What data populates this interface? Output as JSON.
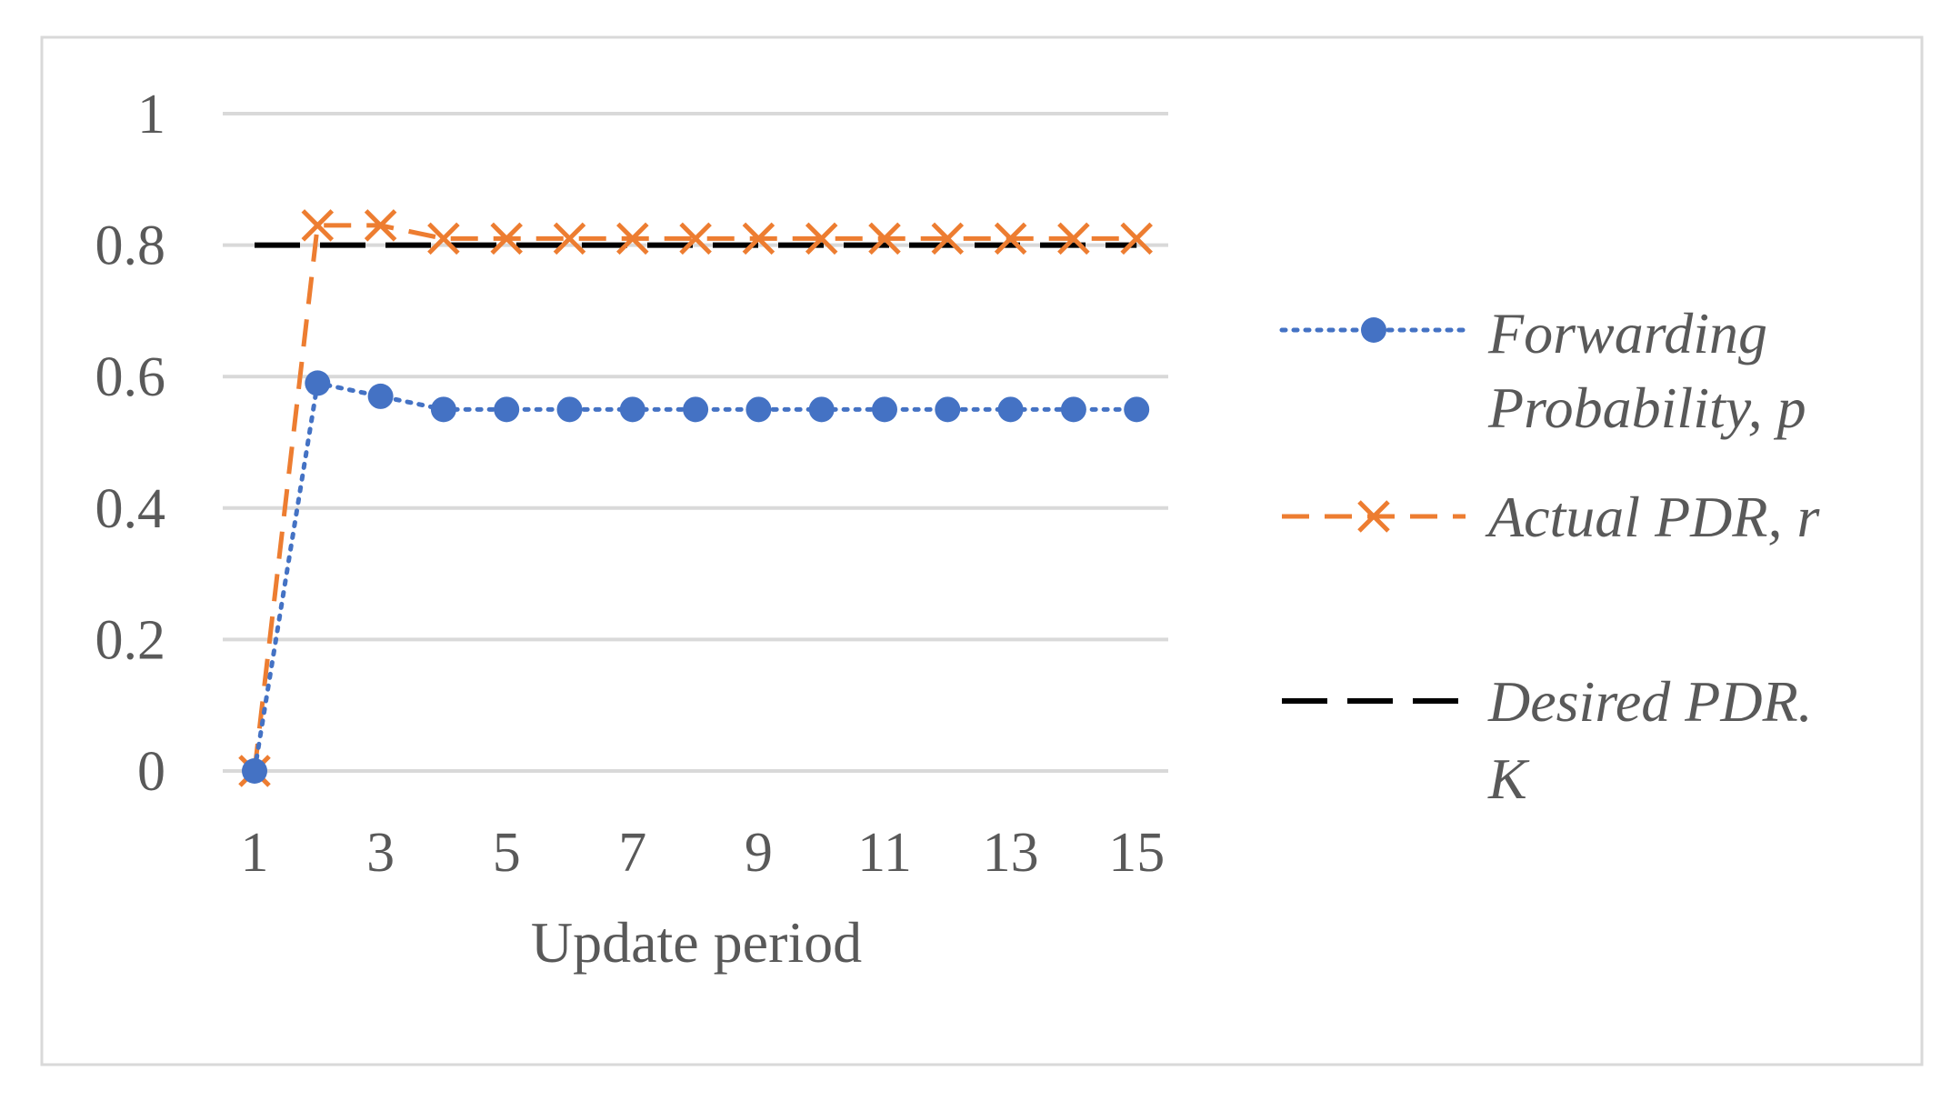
{
  "chart_data": {
    "type": "line",
    "xlabel": "Update period",
    "ylabel": "",
    "x": [
      1,
      2,
      3,
      4,
      5,
      6,
      7,
      8,
      9,
      10,
      11,
      12,
      13,
      14,
      15
    ],
    "x_tick_labels": [
      "1",
      "3",
      "5",
      "7",
      "9",
      "11",
      "13",
      "15"
    ],
    "y_tick_labels": [
      "0",
      "0.2",
      "0.4",
      "0.6",
      "0.8",
      "1"
    ],
    "ylim": [
      0,
      1
    ],
    "grid": "horizontal",
    "legend_position": "right",
    "series": [
      {
        "name": "Forwarding Probability, p",
        "name_lines": [
          "Forwarding",
          "Probability, p"
        ],
        "values": [
          0,
          0.59,
          0.57,
          0.55,
          0.55,
          0.55,
          0.55,
          0.55,
          0.55,
          0.55,
          0.55,
          0.55,
          0.55,
          0.55,
          0.55
        ],
        "color": "#4472C4",
        "line_style": "dotted",
        "marker": "circle"
      },
      {
        "name": "Actual PDR, r",
        "name_lines": [
          "Actual PDR, r"
        ],
        "values": [
          0,
          0.83,
          0.83,
          0.81,
          0.81,
          0.81,
          0.81,
          0.81,
          0.81,
          0.81,
          0.81,
          0.81,
          0.81,
          0.81,
          0.81
        ],
        "color": "#ED7D31",
        "line_style": "dashed",
        "marker": "x"
      },
      {
        "name": "Desired PDR. K",
        "name_lines": [
          "Desired PDR.",
          "K"
        ],
        "values": [
          0.8,
          0.8,
          0.8,
          0.8,
          0.8,
          0.8,
          0.8,
          0.8,
          0.8,
          0.8,
          0.8,
          0.8,
          0.8,
          0.8,
          0.8
        ],
        "color": "#000000",
        "line_style": "long-dash",
        "marker": "none"
      }
    ]
  }
}
